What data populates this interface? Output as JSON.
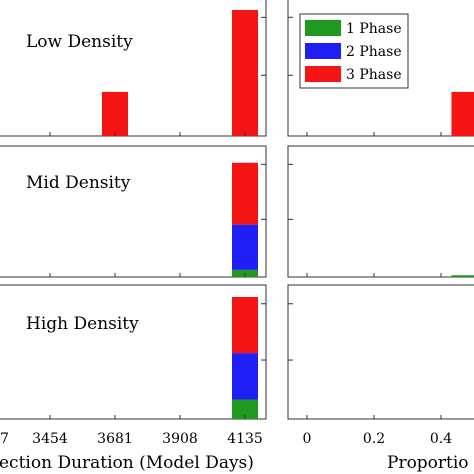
{
  "colors": {
    "phase1": "#1f9a1f",
    "phase2": "#1f1ff5",
    "phase3": "#f51414",
    "axis": "#333333"
  },
  "chart_data": {
    "type": "bar",
    "stacked": true,
    "legend": {
      "placement": "top-left",
      "entries": [
        "1 Phase",
        "2 Phase",
        "3 Phase"
      ]
    },
    "panels": [
      {
        "row_label": "Low Density",
        "left": {
          "bars": [
            {
              "x": 3681,
              "phase1": 0,
              "phase2": 0,
              "phase3": 0.35
            },
            {
              "x": 4135,
              "phase1": 0,
              "phase2": 0,
              "phase3": 1.0
            }
          ]
        },
        "right": {
          "bars": [
            {
              "x": 0.47,
              "phase1": 0,
              "phase2": 0,
              "phase3": 0.35
            }
          ]
        }
      },
      {
        "row_label": "Mid Density",
        "left": {
          "bars": [
            {
              "x": 4135,
              "phase1": 0.06,
              "phase2": 0.38,
              "phase3": 0.52
            }
          ]
        },
        "right": {
          "bars": [
            {
              "x": 0.47,
              "phase1": 0.015,
              "phase2": 0,
              "phase3": 0
            }
          ]
        }
      },
      {
        "row_label": "High Density",
        "left": {
          "bars": [
            {
              "x": 4135,
              "phase1": 0.16,
              "phase2": 0.38,
              "phase3": 0.46
            }
          ]
        },
        "right": {
          "bars": []
        }
      }
    ],
    "left_x": {
      "ticks": [
        3454,
        3681,
        3908,
        4135
      ],
      "edge_tick_label": "7",
      "label": "ection Duration (Model Days)"
    },
    "right_x": {
      "ticks": [
        0,
        0.2,
        0.4
      ],
      "label": "Proportio"
    }
  }
}
